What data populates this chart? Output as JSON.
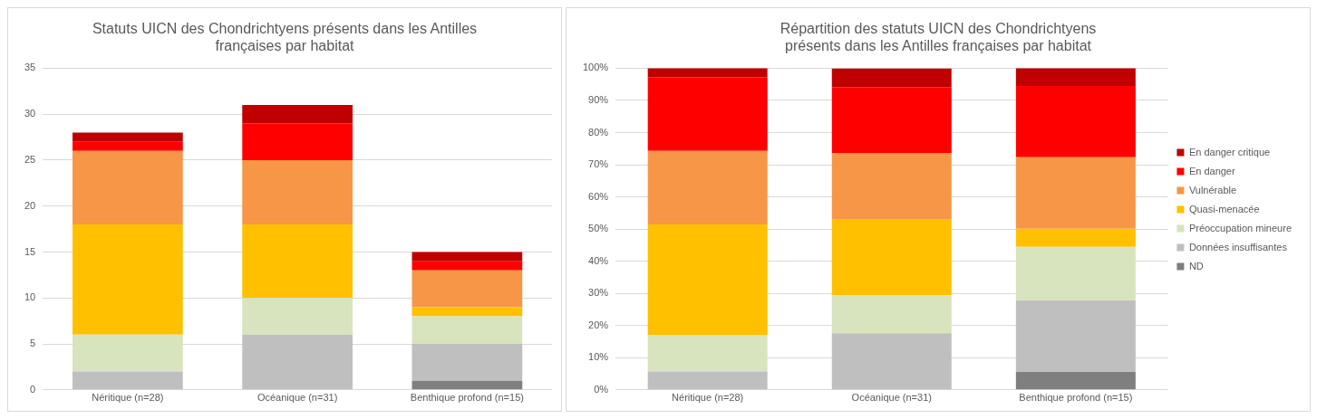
{
  "chart_data": [
    {
      "type": "bar",
      "stacked": true,
      "title": "Statuts UICN des Chondrichtyens présents dans les Antilles\nfrançaises par habitat",
      "categories": [
        "Néritique (n=28)",
        "Océanique (n=31)",
        "Benthique profond (n=15)"
      ],
      "ylim": [
        0,
        35
      ],
      "yticks": [
        0,
        5,
        10,
        15,
        20,
        25,
        30,
        35
      ],
      "grid": "y",
      "legend": false,
      "series": [
        {
          "color": "#7f7f7f",
          "values": [
            0,
            0,
            1
          ]
        },
        {
          "color": "#bfbfbf",
          "values": [
            2,
            6,
            4
          ]
        },
        {
          "color": "#d7e4bd",
          "values": [
            4,
            4,
            3
          ]
        },
        {
          "color": "#ffc000",
          "values": [
            12,
            8,
            1
          ]
        },
        {
          "color": "#f79646",
          "values": [
            8,
            7,
            4
          ]
        },
        {
          "color": "#ff0000",
          "values": [
            1,
            4,
            1
          ]
        },
        {
          "color": "#c00000",
          "values": [
            1,
            2,
            1
          ]
        }
      ]
    },
    {
      "type": "bar",
      "stacked": true,
      "title": "Répartition des statuts UICN des Chondrichtyens\nprésents dans les Antilles françaises par habitat",
      "categories": [
        "Néritique (n=28)",
        "Océanique (n=31)",
        "Benthique profond (n=15)"
      ],
      "ylim": [
        0,
        100
      ],
      "yticks": [
        {
          "value": 0,
          "label": "0%"
        },
        {
          "value": 10,
          "label": "10%"
        },
        {
          "value": 20,
          "label": "20%"
        },
        {
          "value": 30,
          "label": "30%"
        },
        {
          "value": 40,
          "label": "40%"
        },
        {
          "value": 50,
          "label": "50%"
        },
        {
          "value": 60,
          "label": "60%"
        },
        {
          "value": 70,
          "label": "70%"
        },
        {
          "value": 80,
          "label": "80%"
        },
        {
          "value": 90,
          "label": "90%"
        },
        {
          "value": 100,
          "label": "100%"
        }
      ],
      "grid": "y",
      "legend": "right",
      "series": [
        {
          "name": "ND",
          "color": "#7f7f7f",
          "values": [
            0,
            0,
            5.6
          ]
        },
        {
          "name": "Données insuffisantes",
          "color": "#bfbfbf",
          "values": [
            5.7,
            17.6,
            22.2
          ]
        },
        {
          "name": "Préoccupation mineure",
          "color": "#d7e4bd",
          "values": [
            11.4,
            11.8,
            16.7
          ]
        },
        {
          "name": "Quasi-menacée",
          "color": "#ffc000",
          "values": [
            34.3,
            23.5,
            5.6
          ]
        },
        {
          "name": "Vulnérable",
          "color": "#f79646",
          "values": [
            22.9,
            20.6,
            22.2
          ]
        },
        {
          "name": "En danger",
          "color": "#ff0000",
          "values": [
            22.9,
            20.6,
            22.2
          ]
        },
        {
          "name": "En danger critique",
          "color": "#c00000",
          "values": [
            2.9,
            5.9,
            5.6
          ]
        }
      ]
    }
  ]
}
